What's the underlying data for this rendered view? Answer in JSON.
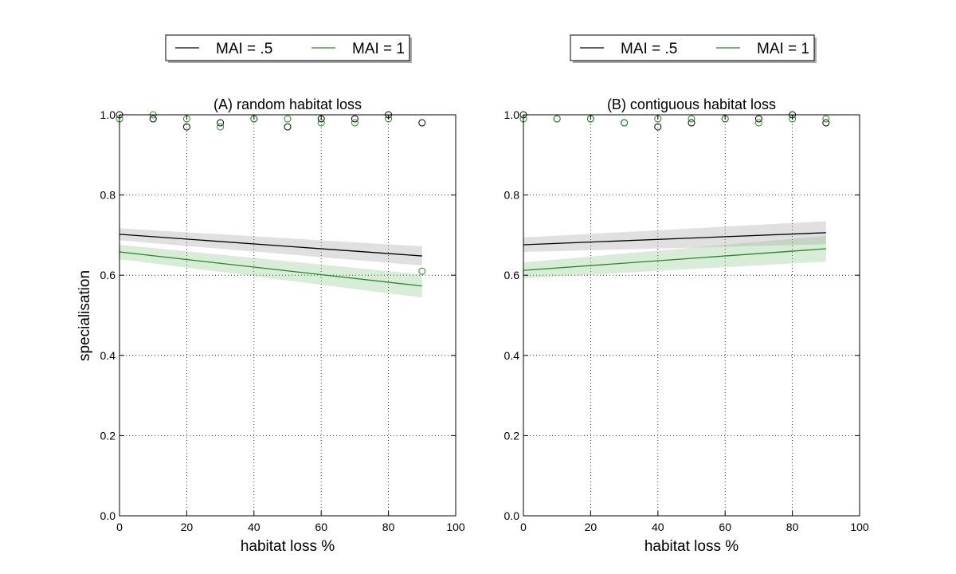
{
  "colors": {
    "mai_05": "#000000",
    "mai_1": "#228B22",
    "band_05": "#999999",
    "band_1": "#7fbf7f",
    "grid": "#000000"
  },
  "legend": [
    {
      "label": "MAI = .5",
      "color": "#000000"
    },
    {
      "label": "MAI = 1",
      "color": "#228B22"
    }
  ],
  "chart_data": [
    {
      "type": "scatter",
      "title": "(A) random habitat loss",
      "xlabel": "habitat loss %",
      "ylabel": "specialisation",
      "xlim": [
        0,
        100
      ],
      "ylim": [
        0,
        1
      ],
      "xticks": [
        0,
        20,
        40,
        60,
        80,
        100
      ],
      "yticks": [
        0.0,
        0.2,
        0.4,
        0.6,
        0.8,
        1.0
      ],
      "xtick_labels": [
        "0",
        "20",
        "40",
        "60",
        "80",
        "100"
      ],
      "ytick_labels": [
        "0.0",
        "0.2",
        "0.4",
        "0.6",
        "0.8",
        "1.0"
      ],
      "grid": true,
      "legend_position": "above",
      "series": [
        {
          "name": "MAI = .5",
          "color": "#000000",
          "x": [
            0,
            10,
            20,
            30,
            40,
            50,
            60,
            70,
            80,
            90
          ],
          "y": [
            1.0,
            0.99,
            0.97,
            0.98,
            0.99,
            0.97,
            0.99,
            0.99,
            1.0,
            0.98
          ],
          "fit": {
            "x": [
              0,
              90
            ],
            "y": [
              0.702,
              0.648
            ],
            "band": 0.015
          }
        },
        {
          "name": "MAI = 1",
          "color": "#228B22",
          "x": [
            0,
            10,
            20,
            30,
            40,
            50,
            60,
            70,
            80,
            90
          ],
          "y": [
            0.99,
            1.0,
            0.99,
            0.97,
            0.99,
            0.99,
            0.98,
            0.98,
            0.99,
            0.61
          ],
          "fit": {
            "x": [
              0,
              90
            ],
            "y": [
              0.658,
              0.573
            ],
            "band": 0.018
          }
        }
      ]
    },
    {
      "type": "scatter",
      "title": "(B) contiguous habitat loss",
      "xlabel": "habitat loss %",
      "ylabel": "",
      "xlim": [
        0,
        100
      ],
      "ylim": [
        0,
        1
      ],
      "xticks": [
        0,
        20,
        40,
        60,
        80,
        100
      ],
      "yticks": [
        0.0,
        0.2,
        0.4,
        0.6,
        0.8,
        1.0
      ],
      "xtick_labels": [
        "0",
        "20",
        "40",
        "60",
        "80",
        "100"
      ],
      "ytick_labels": [
        "0.0",
        "0.2",
        "0.4",
        "0.6",
        "0.8",
        "1.0"
      ],
      "grid": true,
      "legend_position": "above",
      "series": [
        {
          "name": "MAI = .5",
          "color": "#000000",
          "x": [
            0,
            10,
            20,
            30,
            40,
            50,
            60,
            70,
            80,
            90
          ],
          "y": [
            1.0,
            0.99,
            0.99,
            0.98,
            0.97,
            0.98,
            0.99,
            0.99,
            1.0,
            0.98
          ],
          "fit": {
            "x": [
              0,
              90
            ],
            "y": [
              0.676,
              0.706
            ],
            "band": 0.018
          }
        },
        {
          "name": "MAI = 1",
          "color": "#228B22",
          "x": [
            0,
            10,
            20,
            30,
            40,
            50,
            60,
            70,
            80,
            90
          ],
          "y": [
            0.99,
            0.99,
            0.99,
            0.98,
            0.99,
            0.99,
            0.99,
            0.98,
            0.99,
            0.99
          ],
          "fit": {
            "x": [
              0,
              90
            ],
            "y": [
              0.612,
              0.666
            ],
            "band": 0.02
          }
        }
      ]
    }
  ]
}
